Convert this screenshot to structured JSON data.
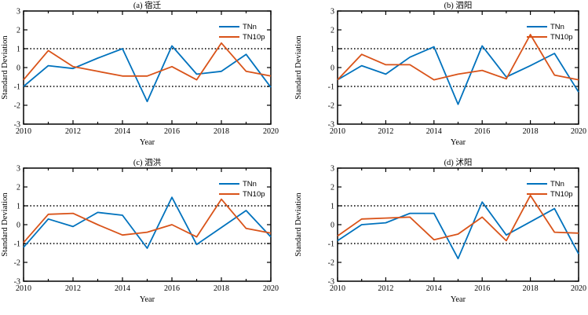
{
  "figure": {
    "background": "#ffffff",
    "axis_color": "#000000"
  },
  "axes": {
    "xlabel": "Year",
    "ylabel": "Standard Deviation",
    "xlim": [
      2010,
      2020
    ],
    "ylim": [
      -3,
      3
    ],
    "xticks_major": [
      2010,
      2012,
      2014,
      2016,
      2018,
      2020
    ],
    "xtick_labels": [
      "2010",
      "2012",
      "2014",
      "2016",
      "2018",
      "2020"
    ],
    "xticks_minor": [
      2011,
      2013,
      2015,
      2017,
      2019
    ],
    "yticks": [
      -3,
      -2,
      -1,
      0,
      1,
      2,
      3
    ],
    "ytick_labels": [
      "-3",
      "-2",
      "-1",
      "0",
      "1",
      "2",
      "3"
    ],
    "reference_lines": [
      1,
      -1
    ],
    "grid": false
  },
  "legend": {
    "position": "upper-right",
    "entries": [
      {
        "label": "TNn",
        "color": "#0072BD"
      },
      {
        "label": "TN10p",
        "color": "#D95319"
      }
    ]
  },
  "chart_data": [
    {
      "type": "line",
      "title": "(a) 宿迁",
      "xlabel": "Year",
      "ylabel": "Standard Deviation",
      "ylim": [
        -3,
        3
      ],
      "x": [
        2010,
        2011,
        2012,
        2013,
        2014,
        2015,
        2016,
        2017,
        2018,
        2019,
        2020
      ],
      "series": [
        {
          "name": "TNn",
          "color": "#0072BD",
          "values": [
            -1.0,
            0.1,
            -0.05,
            0.5,
            1.0,
            -1.8,
            1.15,
            -0.35,
            -0.2,
            0.7,
            -1.05
          ]
        },
        {
          "name": "TN10p",
          "color": "#D95319",
          "values": [
            -0.65,
            0.9,
            0.05,
            -0.2,
            -0.45,
            -0.45,
            0.05,
            -0.65,
            1.3,
            -0.2,
            -0.45
          ]
        }
      ]
    },
    {
      "type": "line",
      "title": "(b) 泗阳",
      "xlabel": "Year",
      "ylabel": "Standard Deviation",
      "ylim": [
        -3,
        3
      ],
      "x": [
        2010,
        2011,
        2012,
        2013,
        2014,
        2015,
        2016,
        2017,
        2018,
        2019,
        2020
      ],
      "series": [
        {
          "name": "TNn",
          "color": "#0072BD",
          "values": [
            -0.65,
            0.1,
            -0.35,
            0.55,
            1.1,
            -1.95,
            1.15,
            -0.5,
            0.1,
            0.75,
            -1.3
          ]
        },
        {
          "name": "TN10p",
          "color": "#D95319",
          "values": [
            -0.65,
            0.7,
            0.15,
            0.15,
            -0.65,
            -0.35,
            -0.15,
            -0.6,
            1.75,
            -0.4,
            -0.65
          ]
        }
      ]
    },
    {
      "type": "line",
      "title": "(c) 泗洪",
      "xlabel": "Year",
      "ylabel": "Standard Deviation",
      "ylim": [
        -3,
        3
      ],
      "x": [
        2010,
        2011,
        2012,
        2013,
        2014,
        2015,
        2016,
        2017,
        2018,
        2019,
        2020
      ],
      "series": [
        {
          "name": "TNn",
          "color": "#0072BD",
          "values": [
            -1.2,
            0.3,
            -0.1,
            0.65,
            0.5,
            -1.25,
            1.45,
            -1.05,
            -0.15,
            0.75,
            -0.65
          ]
        },
        {
          "name": "TN10p",
          "color": "#D95319",
          "values": [
            -0.95,
            0.55,
            0.6,
            0.0,
            -0.55,
            -0.4,
            0.0,
            -0.65,
            1.35,
            -0.2,
            -0.45
          ]
        }
      ]
    },
    {
      "type": "line",
      "title": "(d) 沭阳",
      "xlabel": "Year",
      "ylabel": "Standard Deviation",
      "ylim": [
        -3,
        3
      ],
      "x": [
        2010,
        2011,
        2012,
        2013,
        2014,
        2015,
        2016,
        2017,
        2018,
        2019,
        2020
      ],
      "series": [
        {
          "name": "TNn",
          "color": "#0072BD",
          "values": [
            -0.85,
            0.0,
            0.1,
            0.6,
            0.6,
            -1.8,
            1.2,
            -0.55,
            0.15,
            0.85,
            -1.55
          ]
        },
        {
          "name": "TN10p",
          "color": "#D95319",
          "values": [
            -0.6,
            0.3,
            0.35,
            0.4,
            -0.8,
            -0.5,
            0.4,
            -0.85,
            1.55,
            -0.4,
            -0.45
          ]
        }
      ]
    }
  ]
}
